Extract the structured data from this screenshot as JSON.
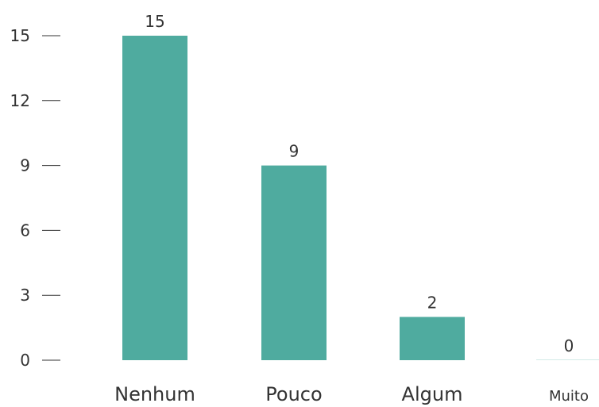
{
  "chart_data": {
    "type": "bar",
    "categories": [
      "Nenhum",
      "Pouco",
      "Algum",
      "Muito"
    ],
    "values": [
      15,
      9,
      2,
      0
    ],
    "title": "",
    "xlabel": "",
    "ylabel": "",
    "ylim": [
      0,
      15
    ],
    "yticks": [
      0,
      3,
      6,
      9,
      12,
      15
    ],
    "grid": false,
    "bar_color": "#4fab9f",
    "text_color": "#333333"
  }
}
